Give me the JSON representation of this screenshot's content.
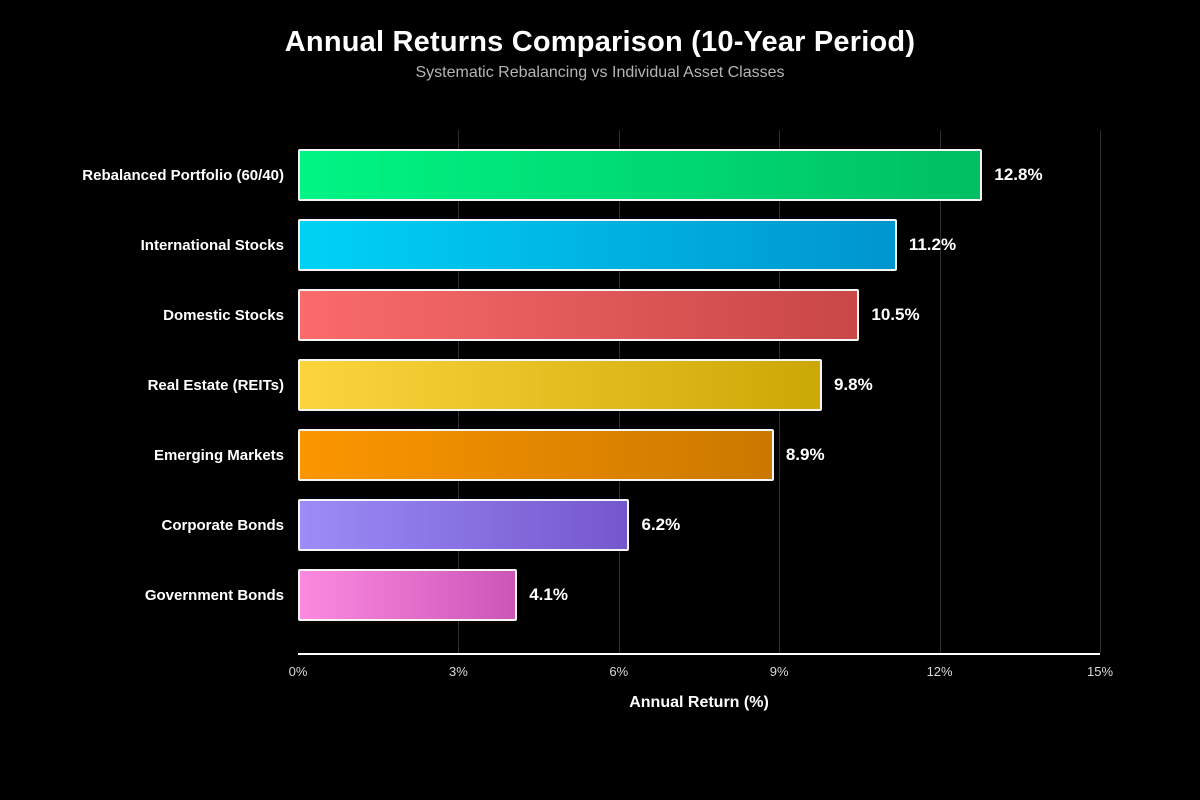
{
  "page": {
    "background": "#000000"
  },
  "header": {
    "title": "Annual Returns Comparison (10-Year Period)",
    "subtitle": "Systematic Rebalancing vs Individual Asset Classes"
  },
  "chart_data": {
    "type": "bar",
    "orientation": "horizontal",
    "title": "Annual Returns Comparison (10-Year Period)",
    "subtitle": "Systematic Rebalancing vs Individual Asset Classes",
    "categories": [
      "Rebalanced Portfolio (60/40)",
      "International Stocks",
      "Domestic Stocks",
      "Real Estate (REITs)",
      "Emerging Markets",
      "Corporate Bonds",
      "Government Bonds"
    ],
    "values": [
      12.8,
      11.2,
      10.5,
      9.8,
      8.9,
      6.2,
      4.1
    ],
    "value_labels": [
      "12.8%",
      "11.2%",
      "10.5%",
      "9.8%",
      "8.9%",
      "6.2%",
      "4.1%"
    ],
    "bar_gradients": [
      {
        "from": "#00f585",
        "to": "#00bf63"
      },
      {
        "from": "#00d2f5",
        "to": "#0095cd"
      },
      {
        "from": "#fa6b6b",
        "to": "#c94747"
      },
      {
        "from": "#fcd53d",
        "to": "#cba806"
      },
      {
        "from": "#fc9600",
        "to": "#cb7800"
      },
      {
        "from": "#9c8cf8",
        "to": "#7557cc"
      },
      {
        "from": "#fb8ae0",
        "to": "#cc55b8"
      }
    ],
    "bar_border_color": "#f5f5f5",
    "xlabel": "Annual Return (%)",
    "xlim": [
      0,
      15
    ],
    "xticks": [
      {
        "value": 0,
        "label": "0%"
      },
      {
        "value": 3,
        "label": "3%"
      },
      {
        "value": 6,
        "label": "6%"
      },
      {
        "value": 9,
        "label": "9%"
      },
      {
        "value": 12,
        "label": "12%"
      },
      {
        "value": 15,
        "label": "15%"
      }
    ],
    "grid": true,
    "gridline_color": "#2e2e2e",
    "axis_line_color": "#ffffff",
    "text_color": "#ffffff",
    "tick_label_color": "#d9d9d9",
    "legend": "none"
  }
}
